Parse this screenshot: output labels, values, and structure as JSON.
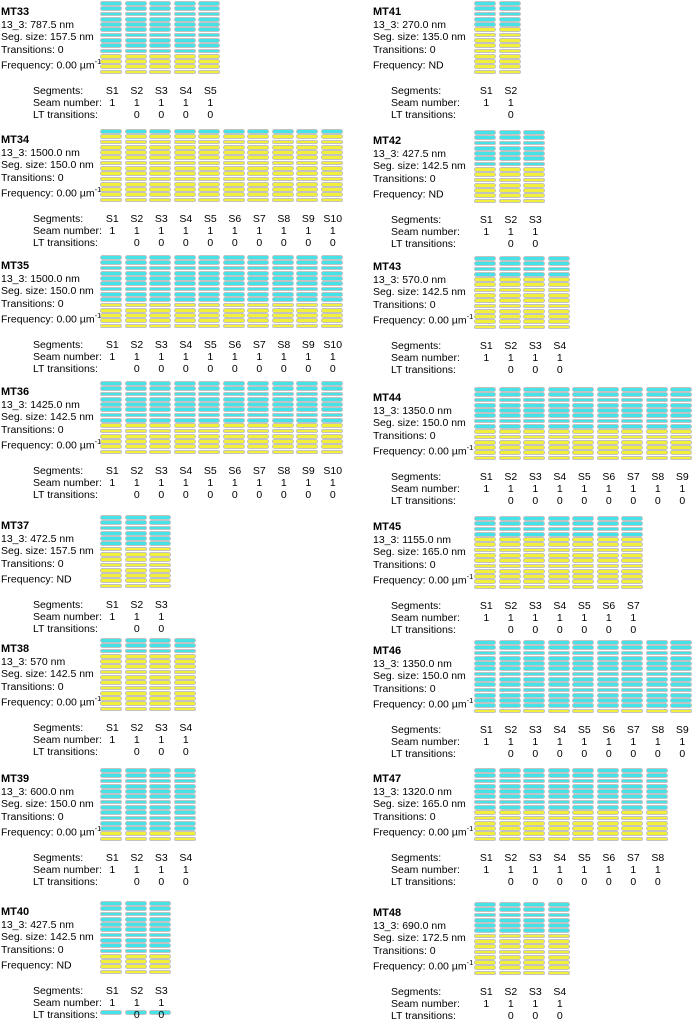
{
  "figure": {
    "colors": {
      "lattice_top": "#45e2e8",
      "lattice_bottom": "#f1ef3b",
      "cell_border": "#c2c2c2"
    },
    "labels": {
      "segments": "Segments:",
      "seam_number": "Seam number:",
      "lt_transitions": "LT transitions:"
    },
    "panels": [
      {
        "id": "MT33",
        "length_label": "13_3: 787.5 nm",
        "seg_size_label": "Seg. size: 157.5 nm",
        "transitions_label": "Transitions: 0",
        "frequency_label": "Frequency: 0.00 µm",
        "frequency_sup": "-1",
        "lattice": {
          "cyan_rows": 10,
          "yellow_rows": 4
        },
        "segments": [
          "S1",
          "S2",
          "S3",
          "S4",
          "S5"
        ],
        "seam_numbers": [
          "1",
          "1",
          "1",
          "1",
          "1"
        ],
        "lt_transitions": [
          "",
          "0",
          "0",
          "0",
          "0"
        ]
      },
      {
        "id": "MT34",
        "length_label": "13_3: 1500.0 nm",
        "seg_size_label": "Seg. size: 150.0 nm",
        "transitions_label": "Transitions: 0",
        "frequency_label": "Frequency: 0.00 µm",
        "frequency_sup": "-1",
        "lattice": {
          "cyan_rows": 1,
          "yellow_rows": 13
        },
        "segments": [
          "S1",
          "S2",
          "S3",
          "S4",
          "S5",
          "S6",
          "S7",
          "S8",
          "S9",
          "S10"
        ],
        "seam_numbers": [
          "1",
          "1",
          "1",
          "1",
          "1",
          "1",
          "1",
          "1",
          "1",
          "1"
        ],
        "lt_transitions": [
          "",
          "0",
          "0",
          "0",
          "0",
          "0",
          "0",
          "0",
          "0",
          "0"
        ]
      },
      {
        "id": "MT35",
        "length_label": "13_3: 1500.0 nm",
        "seg_size_label": "Seg. size: 150.0 nm",
        "transitions_label": "Transitions: 0",
        "frequency_label": "Frequency: 0.00 µm",
        "frequency_sup": "-1",
        "lattice": {
          "cyan_rows": 9,
          "yellow_rows": 5
        },
        "segments": [
          "S1",
          "S2",
          "S3",
          "S4",
          "S5",
          "S6",
          "S7",
          "S8",
          "S9",
          "S10"
        ],
        "seam_numbers": [
          "1",
          "1",
          "1",
          "1",
          "1",
          "1",
          "1",
          "1",
          "1",
          "1"
        ],
        "lt_transitions": [
          "",
          "0",
          "0",
          "0",
          "0",
          "0",
          "0",
          "0",
          "0",
          "0"
        ]
      },
      {
        "id": "MT36",
        "length_label": "13_3: 1425.0 nm",
        "seg_size_label": "Seg. size: 142.5 nm",
        "transitions_label": "Transitions: 0",
        "frequency_label": "Frequency: 0.00 µm",
        "frequency_sup": "-1",
        "lattice": {
          "cyan_rows": 8,
          "yellow_rows": 6
        },
        "segments": [
          "S1",
          "S2",
          "S3",
          "S4",
          "S5",
          "S6",
          "S7",
          "S8",
          "S9",
          "S10"
        ],
        "seam_numbers": [
          "1",
          "1",
          "1",
          "1",
          "1",
          "1",
          "1",
          "1",
          "1",
          "1"
        ],
        "lt_transitions": [
          "",
          "0",
          "0",
          "0",
          "0",
          "0",
          "0",
          "0",
          "0",
          "0"
        ]
      },
      {
        "id": "MT37",
        "length_label": "13_3: 472.5 nm",
        "seg_size_label": "Seg. size: 157.5 nm",
        "transitions_label": "Transitions: 0",
        "frequency_label": "Frequency: ND",
        "frequency_sup": "",
        "lattice": {
          "cyan_rows": 6,
          "yellow_rows": 8
        },
        "segments": [
          "S1",
          "S2",
          "S3"
        ],
        "seam_numbers": [
          "1",
          "1",
          "1"
        ],
        "lt_transitions": [
          "",
          "0",
          "0"
        ]
      },
      {
        "id": "MT38",
        "length_label": "13_3: 570 nm",
        "seg_size_label": "Seg. size: 142.5 nm",
        "transitions_label": "Transitions: 0",
        "frequency_label": "Frequency: 0.00 µm",
        "frequency_sup": "-1",
        "lattice": {
          "cyan_rows": 3,
          "yellow_rows": 11
        },
        "segments": [
          "S1",
          "S2",
          "S3",
          "S4"
        ],
        "seam_numbers": [
          "1",
          "1",
          "1",
          "1"
        ],
        "lt_transitions": [
          "",
          "0",
          "0",
          "0"
        ]
      },
      {
        "id": "MT39",
        "length_label": "13_3: 600.0 nm",
        "seg_size_label": "Seg. size: 150.0 nm",
        "transitions_label": "Transitions: 0",
        "frequency_label": "Frequency: 0.00 µm",
        "frequency_sup": "-1",
        "lattice": {
          "cyan_rows": 12,
          "yellow_rows": 2
        },
        "segments": [
          "S1",
          "S2",
          "S3",
          "S4"
        ],
        "seam_numbers": [
          "1",
          "1",
          "1",
          "1"
        ],
        "lt_transitions": [
          "",
          "0",
          "0",
          "0"
        ]
      },
      {
        "id": "MT40",
        "length_label": "13_3: 427.5 nm",
        "seg_size_label": "Seg. size: 142.5 nm",
        "transitions_label": "Transitions: 0",
        "frequency_label": "Frequency: ND",
        "frequency_sup": "",
        "lattice": {
          "cyan_rows": 10,
          "yellow_rows": 4
        },
        "segments": [
          "S1",
          "S2",
          "S3"
        ],
        "seam_numbers": [
          "1",
          "1",
          "1"
        ],
        "lt_transitions": [
          "",
          "0",
          "0"
        ]
      },
      {
        "id": "MT41",
        "length_label": "13_3: 270.0 nm",
        "seg_size_label": "Seg. size: 135.0 nm",
        "transitions_label": "Transitions: 0",
        "frequency_label": "Frequency: ND",
        "frequency_sup": "",
        "lattice": {
          "cyan_rows": 5,
          "yellow_rows": 9
        },
        "segments": [
          "S1",
          "S2"
        ],
        "seam_numbers": [
          "1",
          "1"
        ],
        "lt_transitions": [
          "",
          "0"
        ]
      },
      {
        "id": "MT42",
        "length_label": "13_3: 427.5 nm",
        "seg_size_label": "Seg. size: 142.5 nm",
        "transitions_label": "Transitions: 0",
        "frequency_label": "Frequency: ND",
        "frequency_sup": "",
        "lattice": {
          "cyan_rows": 7,
          "yellow_rows": 7
        },
        "segments": [
          "S1",
          "S2",
          "S3"
        ],
        "seam_numbers": [
          "1",
          "1",
          "1"
        ],
        "lt_transitions": [
          "",
          "0",
          "0"
        ]
      },
      {
        "id": "MT43",
        "length_label": "13_3: 570.0 nm",
        "seg_size_label": "Seg. size: 142.5 nm",
        "transitions_label": "Transitions: 0",
        "frequency_label": "Frequency: 0.00 µm",
        "frequency_sup": "-1",
        "lattice": {
          "cyan_rows": 4,
          "yellow_rows": 10
        },
        "segments": [
          "S1",
          "S2",
          "S3",
          "S4"
        ],
        "seam_numbers": [
          "1",
          "1",
          "1",
          "1"
        ],
        "lt_transitions": [
          "",
          "0",
          "0",
          "0"
        ]
      },
      {
        "id": "MT44",
        "length_label": "13_3: 1350.0 nm",
        "seg_size_label": "Seg. size: 150.0 nm",
        "transitions_label": "Transitions: 0",
        "frequency_label": "Frequency: 0.00 µm",
        "frequency_sup": "-1",
        "lattice": {
          "cyan_rows": 8,
          "yellow_rows": 6
        },
        "segments": [
          "S1",
          "S2",
          "S3",
          "S4",
          "S5",
          "S6",
          "S7",
          "S8",
          "S9"
        ],
        "seam_numbers": [
          "1",
          "1",
          "1",
          "1",
          "1",
          "1",
          "1",
          "1",
          "1"
        ],
        "lt_transitions": [
          "",
          "0",
          "0",
          "0",
          "0",
          "0",
          "0",
          "0",
          "0"
        ]
      },
      {
        "id": "MT45",
        "length_label": "13_3: 1155.0 nm",
        "seg_size_label": "Seg. size: 165.0 nm",
        "transitions_label": "Transitions: 0",
        "frequency_label": "Frequency: 0.00 µm",
        "frequency_sup": "-1",
        "lattice": {
          "cyan_rows": 4,
          "yellow_rows": 10
        },
        "segments": [
          "S1",
          "S2",
          "S3",
          "S4",
          "S5",
          "S6",
          "S7"
        ],
        "seam_numbers": [
          "1",
          "1",
          "1",
          "1",
          "1",
          "1",
          "1"
        ],
        "lt_transitions": [
          "",
          "0",
          "0",
          "0",
          "0",
          "0",
          "0"
        ]
      },
      {
        "id": "MT46",
        "length_label": "13_3: 1350.0 nm",
        "seg_size_label": "Seg. size: 150.0 nm",
        "transitions_label": "Transitions: 0",
        "frequency_label": "Frequency: 0.00 µm",
        "frequency_sup": "-1",
        "lattice": {
          "cyan_rows": 13,
          "yellow_rows": 1
        },
        "segments": [
          "S1",
          "S2",
          "S3",
          "S4",
          "S5",
          "S6",
          "S7",
          "S8",
          "S9"
        ],
        "seam_numbers": [
          "1",
          "1",
          "1",
          "1",
          "1",
          "1",
          "1",
          "1",
          "1"
        ],
        "lt_transitions": [
          "",
          "0",
          "0",
          "0",
          "0",
          "0",
          "0",
          "0",
          "0"
        ]
      },
      {
        "id": "MT47",
        "length_label": "13_3: 1320.0 nm",
        "seg_size_label": "Seg. size: 165.0 nm",
        "transitions_label": "Transitions: 0",
        "frequency_label": "Frequency: 0.00 µm",
        "frequency_sup": "-1",
        "lattice": {
          "cyan_rows": 8,
          "yellow_rows": 6
        },
        "segments": [
          "S1",
          "S2",
          "S3",
          "S4",
          "S5",
          "S6",
          "S7",
          "S8"
        ],
        "seam_numbers": [
          "1",
          "1",
          "1",
          "1",
          "1",
          "1",
          "1",
          "1"
        ],
        "lt_transitions": [
          "",
          "0",
          "0",
          "0",
          "0",
          "0",
          "0",
          "0"
        ]
      },
      {
        "id": "MT48",
        "length_label": "13_3: 690.0 nm",
        "seg_size_label": "Seg. size: 172.5 nm",
        "transitions_label": "Transitions: 0",
        "frequency_label": "Frequency: 0.00 µm",
        "frequency_sup": "-1",
        "lattice": {
          "cyan_rows": 6,
          "yellow_rows": 8
        },
        "segments": [
          "S1",
          "S2",
          "S3",
          "S4"
        ],
        "seam_numbers": [
          "1",
          "1",
          "1",
          "1"
        ],
        "lt_transitions": [
          "",
          "0",
          "0",
          "0"
        ]
      }
    ],
    "clipped_strip": {
      "columns": 3
    }
  }
}
